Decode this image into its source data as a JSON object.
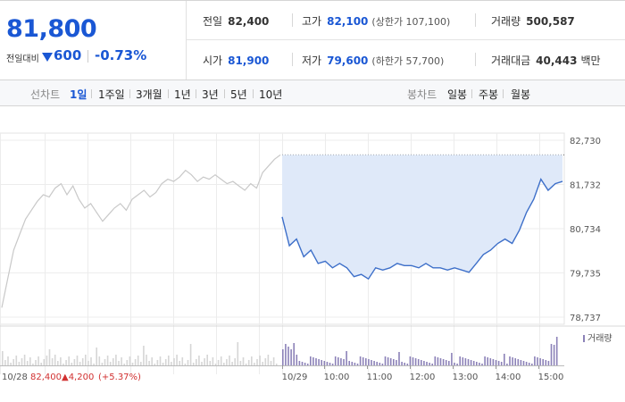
{
  "quote": {
    "price": "81,800",
    "change_label": "전일대비",
    "change_value": "600",
    "change_pct": "-0.73%",
    "prev_close_label": "전일",
    "prev_close": "82,400",
    "high_label": "고가",
    "high": "82,100",
    "upper_limit": "(상한가 107,100)",
    "volume_label": "거래량",
    "volume": "500,587",
    "open_label": "시가",
    "open": "81,900",
    "low_label": "저가",
    "low": "79,600",
    "lower_limit": "(하한가 57,700)",
    "amount_label": "거래대금",
    "amount": "40,443",
    "amount_unit": "백만"
  },
  "tabs": {
    "line_label": "선차트",
    "line_periods": [
      "1일",
      "1주일",
      "3개월",
      "1년",
      "3년",
      "5년",
      "10년"
    ],
    "line_active": "1일",
    "candle_label": "봉차트",
    "candle_periods": [
      "일봉",
      "주봉",
      "월봉"
    ]
  },
  "bottom": {
    "prev_date": "10/28",
    "prev_close": "82,400",
    "prev_change": "▲4,200",
    "prev_pct": "(+5.37%)"
  },
  "colors": {
    "accent_blue": "#1a57d4",
    "line_blue": "#3d6fc9",
    "area_fill": "#dfe9f9",
    "prev_line": "#c8c8c8",
    "volume_prev": "#d6d6d6",
    "volume_today": "#8c82b8",
    "up_red": "#d13030"
  },
  "chart_data": {
    "type": "line",
    "y_ticks": [
      82730,
      81732,
      80734,
      79735,
      78737
    ],
    "y_tick_labels": [
      "82,730",
      "81,732",
      "80,734",
      "79,735",
      "78,737"
    ],
    "ylim": [
      78737,
      82730
    ],
    "reference_close": 82400,
    "x_tick_labels": [
      "10/28",
      "10/29",
      "10:00",
      "11:00",
      "12:00",
      "13:00",
      "14:00",
      "15:00"
    ],
    "volume_legend": "거래량",
    "series": [
      {
        "name": "10/28",
        "values": [
          78950,
          79600,
          80250,
          80600,
          80950,
          81150,
          81350,
          81500,
          81450,
          81650,
          81750,
          81500,
          81700,
          81400,
          81200,
          81300,
          81100,
          80900,
          81050,
          81200,
          81300,
          81150,
          81400,
          81500,
          81600,
          81450,
          81550,
          81750,
          81850,
          81800,
          81900,
          82050,
          81950,
          81800,
          81900,
          81850,
          81950,
          81850,
          81750,
          81800,
          81700,
          81600,
          81750,
          81650,
          82000,
          82150,
          82300,
          82400
        ]
      },
      {
        "name": "10/29",
        "x": [
          "09:00",
          "09:10",
          "09:20",
          "09:30",
          "09:40",
          "09:50",
          "10:00",
          "10:10",
          "10:20",
          "10:30",
          "10:40",
          "10:50",
          "11:00",
          "11:10",
          "11:20",
          "11:30",
          "11:40",
          "11:50",
          "12:00",
          "12:10",
          "12:20",
          "12:30",
          "12:40",
          "12:50",
          "13:00",
          "13:10",
          "13:20",
          "13:30",
          "13:40",
          "13:50",
          "14:00",
          "14:10",
          "14:20",
          "14:30",
          "14:40",
          "14:50",
          "15:00",
          "15:10",
          "15:20",
          "15:30"
        ],
        "values": [
          81000,
          80350,
          80500,
          80100,
          80250,
          79950,
          80000,
          79850,
          79950,
          79850,
          79650,
          79700,
          79600,
          79850,
          79800,
          79850,
          79950,
          79900,
          79900,
          79850,
          79950,
          79850,
          79850,
          79800,
          79850,
          79800,
          79750,
          79950,
          80150,
          80250,
          80400,
          80500,
          80400,
          80700,
          81100,
          81400,
          81850,
          81600,
          81750,
          81800
        ]
      }
    ]
  }
}
